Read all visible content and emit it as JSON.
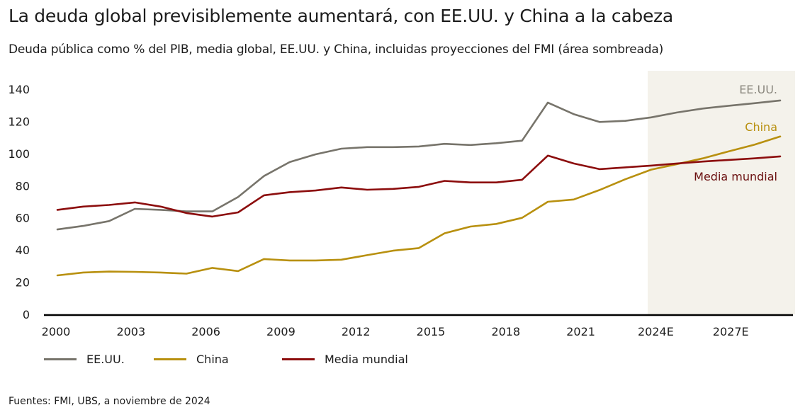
{
  "header": {
    "title": "La deuda global previsiblemente aumentará, con EE.UU. y China a la cabeza",
    "subtitle": "Deuda pública como % del PIB, media global, EE.UU. y China, incluidas proyecciones del FMI (área sombreada)"
  },
  "footer": {
    "source": "Fuentes: FMI, UBS, a noviembre de 2024"
  },
  "chart_data": {
    "type": "line",
    "title": "La deuda global previsiblemente aumentará, con EE.UU. y China a la cabeza",
    "subtitle": "Deuda pública como % del PIB, media global, EE.UU. y China, incluidas proyecciones del FMI (área sombreada)",
    "xlabel": "",
    "ylabel": "",
    "ylim": [
      0,
      140
    ],
    "y_ticks": [
      0,
      20,
      40,
      60,
      80,
      100,
      120,
      140
    ],
    "x_tick_labels": [
      "2000",
      "2003",
      "2006",
      "2009",
      "2012",
      "2015",
      "2018",
      "2021",
      "2024E",
      "2027E"
    ],
    "x": [
      2001,
      2002,
      2003,
      2004,
      2005,
      2006,
      2007,
      2008,
      2009,
      2010,
      2011,
      2012,
      2013,
      2014,
      2015,
      2016,
      2017,
      2018,
      2019,
      2020,
      2021,
      2022,
      2023,
      2024,
      2025,
      2026,
      2027,
      2028,
      2029
    ],
    "projection_shaded_from_index": 23,
    "projection_label": "proyecciones del FMI (área sombreada)",
    "grid": false,
    "legend_position": "bottom-left",
    "series": [
      {
        "name": "EE.UU.",
        "color": "#77746b",
        "values": [
          52.8,
          55,
          58,
          65.6,
          65,
          64,
          64,
          73,
          86,
          94.7,
          99.5,
          103,
          104,
          104,
          104.4,
          106,
          105.3,
          106.4,
          108,
          131.7,
          124.5,
          119.6,
          120.3,
          122.5,
          125.5,
          128,
          129.7,
          131.3,
          133
        ]
      },
      {
        "name": "China",
        "color": "#b8900f",
        "values": [
          24.2,
          26,
          26.6,
          26.4,
          26,
          25.3,
          28.9,
          26.9,
          34.4,
          33.5,
          33.5,
          34,
          36.8,
          39.6,
          41.2,
          50.4,
          54.6,
          56.2,
          60,
          70,
          71.4,
          77.3,
          84,
          90,
          93.4,
          97,
          101.3,
          105.5,
          110.6
        ]
      },
      {
        "name": "Media mundial",
        "color": "#8c0d0d",
        "values": [
          65,
          67,
          68,
          69.6,
          67,
          63,
          60.8,
          63.4,
          74,
          76,
          77,
          78.9,
          77.5,
          78,
          79.3,
          83,
          82,
          82,
          83.7,
          98.7,
          93.8,
          90.3,
          91.4,
          92.5,
          93.8,
          95,
          96,
          97,
          98.2
        ]
      }
    ],
    "annotations": [
      {
        "text": "EE.UU.",
        "series": "EE.UU.",
        "color": "#8a877e"
      },
      {
        "text": "China",
        "series": "China",
        "color": "#b8900f"
      },
      {
        "text": "Media mundial",
        "series": "Media mundial",
        "color": "#6b1010"
      }
    ],
    "shade_color": "#f4f2eb",
    "axis_color": "#000000"
  }
}
